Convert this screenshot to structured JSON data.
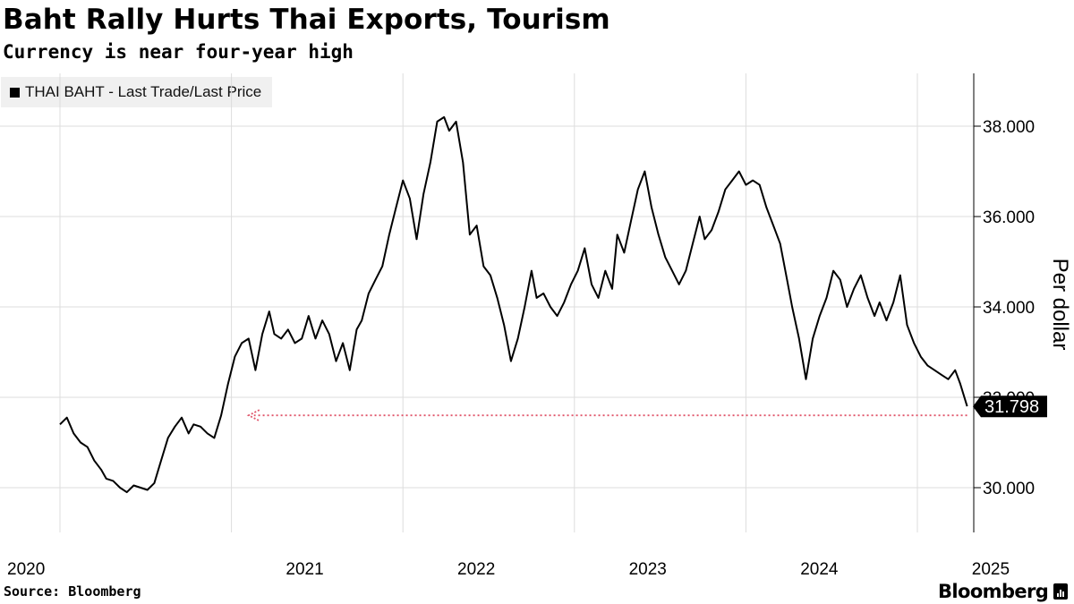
{
  "header": {
    "title": "Baht Rally Hurts Thai Exports, Tourism",
    "subtitle": "Currency is near four-year high"
  },
  "legend": {
    "label": "THAI BAHT - Last Trade/Last Price"
  },
  "footer": {
    "source": "Source: Bloomberg",
    "brand": "Bloomberg"
  },
  "colors": {
    "line": "#000000",
    "grid": "#dddddd",
    "arrow": "#e0556a",
    "badge": "#000000"
  },
  "chart_data": {
    "type": "line",
    "title": "Baht Rally Hurts Thai Exports, Tourism",
    "subtitle": "Currency is near four-year high",
    "ylabel": "Per dollar",
    "xlabel": "",
    "ylim": [
      29.0,
      39.0
    ],
    "yticks": [
      30.0,
      32.0,
      34.0,
      36.0,
      38.0
    ],
    "ytick_labels": [
      "30.000",
      "32.000",
      "34.000",
      "36.000",
      "38.000"
    ],
    "xlim": [
      2020.0,
      2025.35
    ],
    "xticks": [
      2020,
      2021,
      2022,
      2023,
      2024,
      2025
    ],
    "xtick_labels": [
      "2020",
      "2021",
      "2022",
      "2023",
      "2024",
      "2025"
    ],
    "grid": true,
    "series": [
      {
        "name": "THAI BAHT - Last Trade/Last Price",
        "x": [
          2020.0,
          2020.04,
          2020.08,
          2020.12,
          2020.16,
          2020.2,
          2020.24,
          2020.27,
          2020.31,
          2020.35,
          2020.39,
          2020.43,
          2020.47,
          2020.51,
          2020.55,
          2020.59,
          2020.63,
          2020.67,
          2020.71,
          2020.75,
          2020.78,
          2020.82,
          2020.86,
          2020.9,
          2020.94,
          2020.98,
          2021.02,
          2021.06,
          2021.1,
          2021.14,
          2021.18,
          2021.22,
          2021.25,
          2021.29,
          2021.33,
          2021.37,
          2021.41,
          2021.45,
          2021.49,
          2021.53,
          2021.57,
          2021.61,
          2021.65,
          2021.69,
          2021.73,
          2021.76,
          2021.8,
          2021.84,
          2021.88,
          2021.92,
          2021.96,
          2022.0,
          2022.04,
          2022.08,
          2022.12,
          2022.16,
          2022.2,
          2022.24,
          2022.27,
          2022.31,
          2022.35,
          2022.39,
          2022.43,
          2022.47,
          2022.51,
          2022.55,
          2022.59,
          2022.63,
          2022.67,
          2022.71,
          2022.75,
          2022.78,
          2022.82,
          2022.86,
          2022.9,
          2022.94,
          2022.98,
          2023.02,
          2023.06,
          2023.1,
          2023.14,
          2023.18,
          2023.22,
          2023.25,
          2023.29,
          2023.33,
          2023.37,
          2023.41,
          2023.45,
          2023.49,
          2023.53,
          2023.57,
          2023.61,
          2023.65,
          2023.69,
          2023.73,
          2023.76,
          2023.8,
          2023.84,
          2023.88,
          2023.92,
          2023.96,
          2024.0,
          2024.04,
          2024.08,
          2024.12,
          2024.16,
          2024.2,
          2024.24,
          2024.27,
          2024.31,
          2024.35,
          2024.39,
          2024.43,
          2024.47,
          2024.51,
          2024.55,
          2024.59,
          2024.63,
          2024.67,
          2024.71,
          2024.75,
          2024.78,
          2024.82,
          2024.86,
          2024.9,
          2024.94,
          2024.98,
          2025.02,
          2025.06,
          2025.1,
          2025.14,
          2025.18,
          2025.22,
          2025.25,
          2025.29
        ],
        "y": [
          31.4,
          31.55,
          31.2,
          31.0,
          30.9,
          30.6,
          30.4,
          30.2,
          30.15,
          30.0,
          29.9,
          30.05,
          30.0,
          29.95,
          30.1,
          30.6,
          31.1,
          31.35,
          31.55,
          31.2,
          31.4,
          31.35,
          31.2,
          31.1,
          31.6,
          32.3,
          32.9,
          33.2,
          33.3,
          32.6,
          33.4,
          33.9,
          33.4,
          33.3,
          33.5,
          33.2,
          33.3,
          33.8,
          33.3,
          33.7,
          33.4,
          32.8,
          33.2,
          32.6,
          33.5,
          33.7,
          34.3,
          34.6,
          34.9,
          35.6,
          36.2,
          36.8,
          36.4,
          35.5,
          36.5,
          37.2,
          38.1,
          38.2,
          37.9,
          38.1,
          37.2,
          35.6,
          35.8,
          34.9,
          34.7,
          34.2,
          33.6,
          32.8,
          33.3,
          34.0,
          34.8,
          34.2,
          34.3,
          34.0,
          33.8,
          34.1,
          34.5,
          34.8,
          35.3,
          34.5,
          34.2,
          34.8,
          34.4,
          35.6,
          35.2,
          35.9,
          36.6,
          37.0,
          36.2,
          35.6,
          35.1,
          34.8,
          34.5,
          34.8,
          35.4,
          36.0,
          35.5,
          35.7,
          36.1,
          36.6,
          36.8,
          37.0,
          36.7,
          36.8,
          36.7,
          36.2,
          35.8,
          35.4,
          34.6,
          34.0,
          33.3,
          32.4,
          33.3,
          33.8,
          34.2,
          34.8,
          34.6,
          34.0,
          34.4,
          34.7,
          34.2,
          33.8,
          34.1,
          33.7,
          34.1,
          34.7,
          33.6,
          33.2,
          32.9,
          32.7,
          32.6,
          32.5,
          32.4,
          32.6,
          32.3,
          31.8
        ],
        "last_value": 31.798,
        "last_value_label": "31.798"
      }
    ],
    "annotations": [
      {
        "type": "arrow",
        "from_x": 2025.29,
        "to_x": 2021.1,
        "y": 31.6,
        "style": "dotted",
        "color": "#e0556a"
      }
    ]
  }
}
